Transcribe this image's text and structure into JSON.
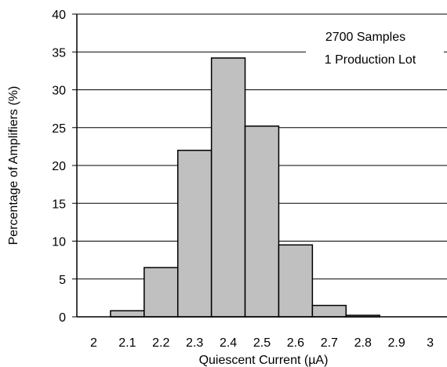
{
  "chart_data": {
    "type": "bar",
    "categories": [
      "2",
      "2.1",
      "2.2",
      "2.3",
      "2.4",
      "2.5",
      "2.6",
      "2.7",
      "2.8",
      "2.9"
    ],
    "values": [
      0,
      0.8,
      6.5,
      22,
      34.2,
      25.2,
      9.5,
      1.5,
      0.2,
      0
    ],
    "x_ticks": [
      "2",
      "2.1",
      "2.2",
      "2.3",
      "2.4",
      "2.5",
      "2.6",
      "2.7",
      "2.8",
      "2.9",
      "3"
    ],
    "y_ticks": [
      "0",
      "5",
      "10",
      "15",
      "20",
      "25",
      "30",
      "35",
      "40"
    ],
    "xlabel": "Quiescent Current (µA)",
    "ylabel": "Percentage of Amplifiers (%)",
    "ylim": [
      0,
      40
    ],
    "annotations": [
      "2700 Samples",
      "1 Production Lot"
    ],
    "grid": "horizontal",
    "bar_color": "#c0c0c0",
    "edge_color": "#000000"
  }
}
